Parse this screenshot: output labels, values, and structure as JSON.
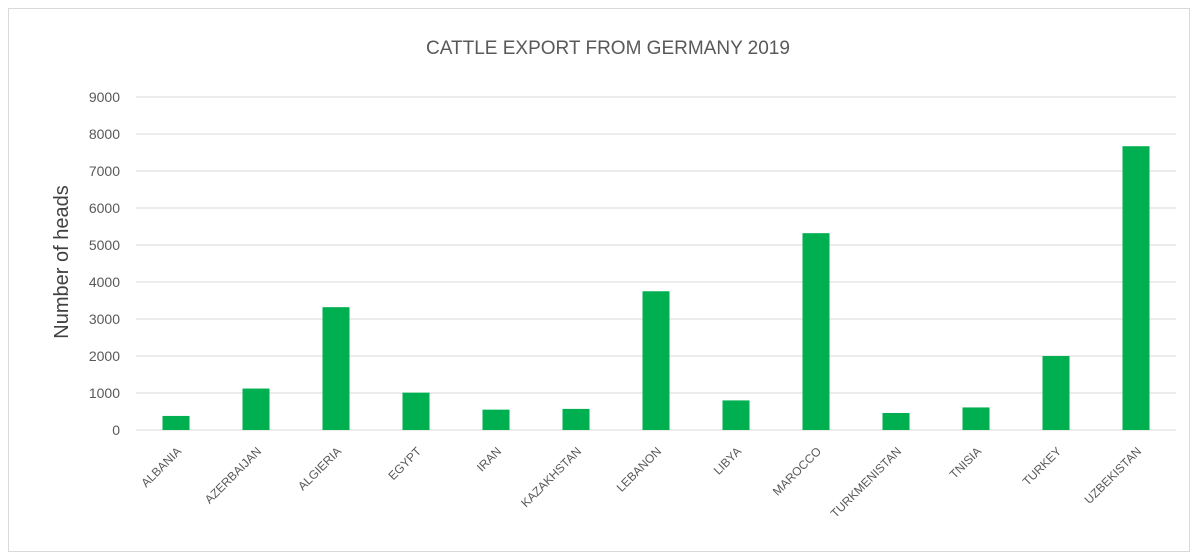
{
  "chart_data": {
    "type": "bar",
    "title": "CATTLE EXPORT FROM GERMANY 2019",
    "xlabel": "",
    "ylabel": "Number of heads",
    "categories": [
      "ALBANIA",
      "AZERBAIJAN",
      "ALGIERIA",
      "EGYPT",
      "IRAN",
      "KAZAKHSTAN",
      "LEBANON",
      "LIBYA",
      "MAROCCO",
      "TURKMENISTAN",
      "TNISIA",
      "TURKEY",
      "UZBEKISTAN"
    ],
    "values": [
      380,
      1120,
      3320,
      1010,
      550,
      570,
      3750,
      800,
      5320,
      460,
      610,
      2000,
      7670
    ],
    "ylim": [
      0,
      9000
    ],
    "yticks": [
      "0",
      "1000",
      "2000",
      "3000",
      "4000",
      "5000",
      "6000",
      "7000",
      "8000",
      "9000"
    ],
    "grid": true,
    "bar_color": "#00b050",
    "grid_color": "#d9d9d9"
  }
}
